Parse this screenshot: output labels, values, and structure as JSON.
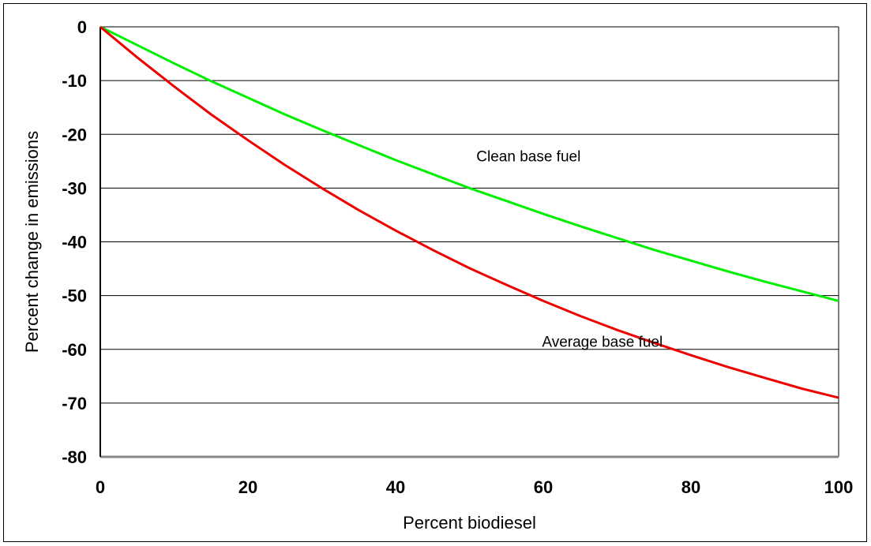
{
  "chart_data": {
    "type": "line",
    "title": "",
    "xlabel": "Percent biodiesel",
    "ylabel": "Percent change in emissions",
    "xlim": [
      0,
      100
    ],
    "ylim": [
      -80,
      0
    ],
    "x_ticks": [
      0,
      20,
      40,
      60,
      80,
      100
    ],
    "y_ticks": [
      0,
      -10,
      -20,
      -30,
      -40,
      -50,
      -60,
      -70,
      -80
    ],
    "grid": "horizontal",
    "legend": "none",
    "series": [
      {
        "color": "#00ee00",
        "x": [
          0,
          5,
          10,
          15,
          20,
          25,
          30,
          35,
          40,
          45,
          50,
          55,
          60,
          65,
          70,
          75,
          80,
          85,
          90,
          95,
          100
        ],
        "y": [
          0,
          -3.4,
          -6.8,
          -10.1,
          -13.2,
          -16.3,
          -19.2,
          -22.0,
          -24.8,
          -27.4,
          -30.0,
          -32.4,
          -34.8,
          -37.1,
          -39.3,
          -41.5,
          -43.5,
          -45.5,
          -47.4,
          -49.2,
          -51.0
        ]
      },
      {
        "color": "#ee0000",
        "x": [
          0,
          5,
          10,
          15,
          20,
          25,
          30,
          35,
          40,
          45,
          50,
          55,
          60,
          65,
          70,
          75,
          80,
          85,
          90,
          95,
          100
        ],
        "y": [
          0,
          -5.7,
          -11.1,
          -16.3,
          -21.1,
          -25.7,
          -30.0,
          -34.1,
          -37.9,
          -41.5,
          -44.9,
          -48.0,
          -51.0,
          -53.8,
          -56.4,
          -58.8,
          -61.1,
          -63.3,
          -65.3,
          -67.3,
          -69.0
        ]
      }
    ],
    "annotations": [
      {
        "text": "Clean base fuel",
        "x": 58,
        "y": -24
      },
      {
        "text": "Average base fuel",
        "x": 68,
        "y": -58.5
      }
    ]
  }
}
